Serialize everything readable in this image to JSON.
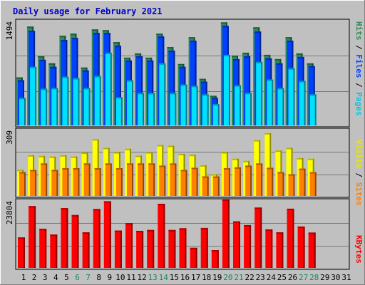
{
  "chart_data": {
    "type": "bar",
    "title": "Daily usage for February 2021",
    "x": [
      "1",
      "2",
      "3",
      "4",
      "5",
      "6",
      "7",
      "8",
      "9",
      "10",
      "11",
      "12",
      "13",
      "14",
      "15",
      "16",
      "17",
      "18",
      "19",
      "20",
      "21",
      "22",
      "23",
      "24",
      "25",
      "26",
      "27",
      "28",
      "29",
      "30",
      "31"
    ],
    "weekend_days": [
      "6",
      "7",
      "13",
      "14",
      "20",
      "21",
      "27",
      "28"
    ],
    "panels": [
      {
        "name": "hits-files-pages",
        "ymax": 1494,
        "ymax_label": "1494",
        "ylabel_parts": [
          "Pages",
          "Files",
          "Hits"
        ],
        "series": [
          {
            "name": "Hits",
            "color": "#2e8b57",
            "values": [
              680,
              1400,
              980,
              880,
              1270,
              1300,
              820,
              1360,
              1350,
              1180,
              960,
              1020,
              960,
              1300,
              1110,
              870,
              1250,
              660,
              420,
              1460,
              990,
              1030,
              1390,
              1000,
              940,
              1250,
              1020,
              880,
              0,
              0,
              0
            ]
          },
          {
            "name": "Files",
            "color": "#0040ff",
            "values": [
              640,
              1340,
              930,
              830,
              1210,
              1240,
              780,
              1310,
              1310,
              1130,
              920,
              980,
              920,
              1260,
              1060,
              830,
              1200,
              620,
              390,
              1410,
              940,
              980,
              1330,
              950,
              880,
              1200,
              970,
              840,
              0,
              0,
              0
            ]
          },
          {
            "name": "Pages",
            "color": "#00e0ff",
            "values": [
              390,
              830,
              520,
              530,
              690,
              670,
              530,
              700,
              1030,
              400,
              640,
              460,
              460,
              880,
              460,
              580,
              560,
              440,
              300,
              1000,
              570,
              460,
              900,
              650,
              530,
              810,
              630,
              440,
              0,
              0,
              0
            ]
          }
        ]
      },
      {
        "name": "visits-sites",
        "ymax": 309,
        "ymax_label": "309",
        "ylabel_parts": [
          "Sites",
          "Visits"
        ],
        "series": [
          {
            "name": "Visits",
            "color": "#ffff00",
            "values": [
              120,
              188,
              185,
              182,
              188,
              182,
              200,
              262,
              222,
              202,
              218,
              186,
              202,
              235,
              232,
              194,
              190,
              142,
              100,
              202,
              172,
              162,
              258,
              290,
              210,
              222,
              175,
              172,
              0,
              0,
              0
            ]
          },
          {
            "name": "Sites",
            "color": "#ff8000",
            "values": [
              110,
              120,
              150,
              120,
              128,
              128,
              150,
              128,
              150,
              128,
              150,
              150,
              150,
              140,
              150,
              120,
              130,
              90,
              90,
              128,
              132,
              140,
              150,
              130,
              110,
              100,
              126,
              110,
              0,
              0,
              0
            ]
          }
        ]
      },
      {
        "name": "kbytes",
        "ymax": 23804,
        "ymax_label": "23804",
        "ylabel_parts": [
          "KBytes"
        ],
        "series": [
          {
            "name": "KBytes",
            "color": "#ff0000",
            "values": [
              10600,
              21500,
              13600,
              11600,
              20800,
              18400,
              12400,
              20500,
              23200,
              13000,
              15600,
              12900,
              13200,
              22300,
              13200,
              13800,
              7000,
              13900,
              6200,
              23800,
              16200,
              14900,
              21000,
              13400,
              12400,
              20600,
              14400,
              12300,
              0,
              0,
              0
            ]
          }
        ]
      }
    ]
  }
}
